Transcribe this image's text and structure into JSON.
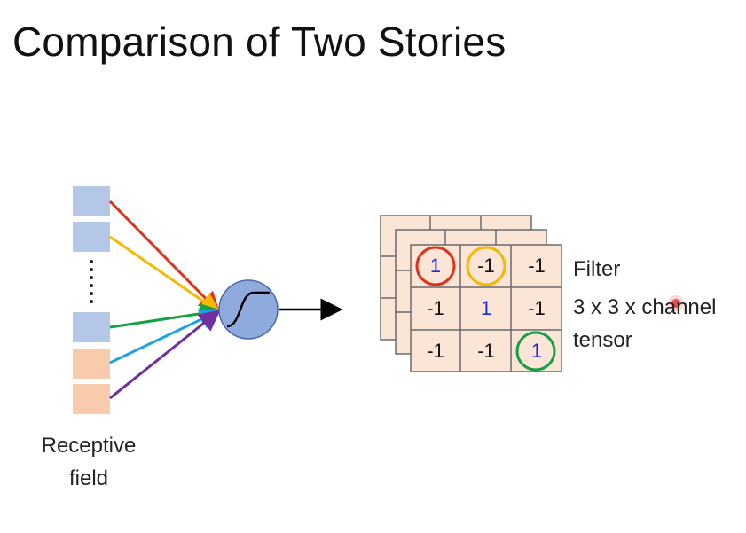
{
  "slide": {
    "title": "Comparison of Two Stories"
  },
  "receptive_field": {
    "label_line1": "Receptive",
    "label_line2": "field",
    "colors": {
      "blue": "#b4c7e7",
      "orange": "#f8cbad"
    }
  },
  "neuron": {
    "icon": "sigmoid-icon",
    "fill": "#8faadc"
  },
  "connection_colors": [
    "#e0301e",
    "#f5b800",
    "#17a046",
    "#1fa3e0",
    "#7030a0"
  ],
  "filter": {
    "cells": [
      [
        "1",
        "-1",
        "-1"
      ],
      [
        "-1",
        "1",
        "-1"
      ],
      [
        "-1",
        "-1",
        "1"
      ]
    ],
    "circle_colors": {
      "red": "#e0301e",
      "orange": "#f5b800",
      "green": "#17a046"
    },
    "cell_fill": "#fbe5d6"
  },
  "labels": {
    "filter": "Filter",
    "shape": "3 x 3 x channel",
    "tensor": "tensor"
  }
}
